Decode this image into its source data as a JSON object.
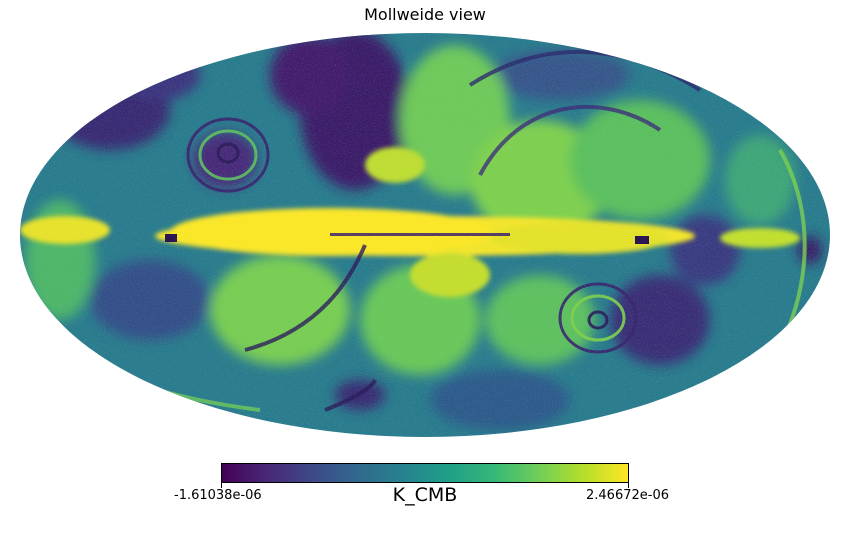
{
  "title": "Mollweide view",
  "colorbar": {
    "min_label": "-1.61038e-06",
    "max_label": "2.46672e-06",
    "unit": "K_CMB",
    "colormap": "viridis"
  },
  "colors": {
    "background": "#ffffff",
    "low": "#440154",
    "mid": "#21918c",
    "high": "#fde725"
  }
}
